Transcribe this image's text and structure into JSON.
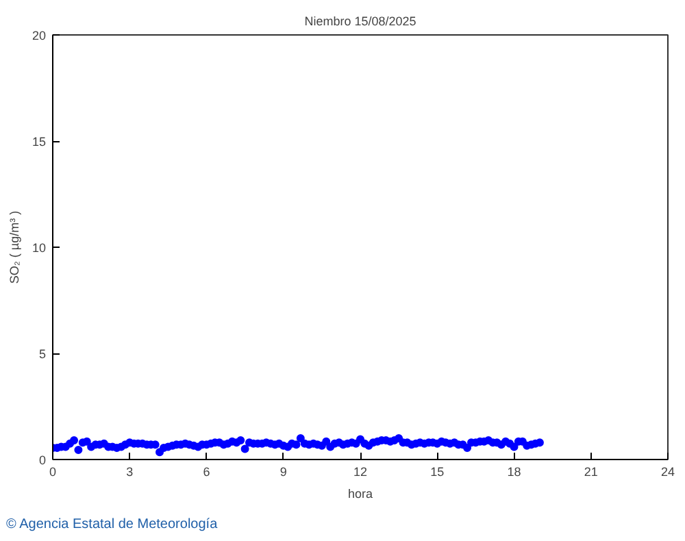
{
  "chart_data": {
    "type": "scatter",
    "title": "Niembro 15/08/2025",
    "xlabel": "hora",
    "ylabel": "SO₂ ( µg/m³ )",
    "annotations": [
      "© Agencia Estatal de Meteorología"
    ],
    "xlim": [
      0,
      24
    ],
    "xticks": [
      0,
      3,
      6,
      9,
      12,
      15,
      18,
      21,
      24
    ],
    "ylim": [
      0,
      20
    ],
    "yticks": [
      0,
      5,
      10,
      15,
      20
    ],
    "grid": false,
    "marker": "circle",
    "series": [
      {
        "color": "#0000ff",
        "x": [
          0,
          0.17,
          0.33,
          0.5,
          0.67,
          0.83,
          1,
          1.17,
          1.33,
          1.5,
          1.67,
          1.83,
          2,
          2.17,
          2.33,
          2.5,
          2.67,
          2.83,
          3,
          3.17,
          3.33,
          3.5,
          3.67,
          3.83,
          4,
          4.17,
          4.33,
          4.5,
          4.67,
          4.83,
          5,
          5.17,
          5.33,
          5.5,
          5.67,
          5.83,
          6,
          6.17,
          6.33,
          6.5,
          6.67,
          6.83,
          7,
          7.17,
          7.33,
          7.5,
          7.67,
          7.83,
          8,
          8.17,
          8.33,
          8.5,
          8.67,
          8.83,
          9,
          9.17,
          9.33,
          9.5,
          9.67,
          9.83,
          10,
          10.17,
          10.33,
          10.5,
          10.67,
          10.83,
          11,
          11.17,
          11.33,
          11.5,
          11.67,
          11.83,
          12,
          12.17,
          12.33,
          12.5,
          12.67,
          12.83,
          13,
          13.17,
          13.33,
          13.5,
          13.67,
          13.83,
          14,
          14.17,
          14.33,
          14.5,
          14.67,
          14.83,
          15,
          15.17,
          15.33,
          15.5,
          15.67,
          15.83,
          16,
          16.17,
          16.33,
          16.5,
          16.67,
          16.83,
          17,
          17.17,
          17.33,
          17.5,
          17.67,
          17.83,
          18,
          18.17,
          18.33,
          18.5,
          18.67,
          18.83,
          19
        ],
        "values": [
          0.55,
          0.55,
          0.6,
          0.6,
          0.75,
          0.9,
          0.45,
          0.8,
          0.85,
          0.6,
          0.7,
          0.7,
          0.75,
          0.6,
          0.6,
          0.55,
          0.6,
          0.7,
          0.8,
          0.75,
          0.75,
          0.75,
          0.7,
          0.7,
          0.7,
          0.35,
          0.55,
          0.6,
          0.65,
          0.7,
          0.7,
          0.75,
          0.7,
          0.65,
          0.6,
          0.7,
          0.7,
          0.75,
          0.8,
          0.8,
          0.7,
          0.75,
          0.85,
          0.8,
          0.9,
          0.5,
          0.8,
          0.75,
          0.75,
          0.75,
          0.8,
          0.75,
          0.7,
          0.75,
          0.65,
          0.6,
          0.75,
          0.7,
          1.0,
          0.75,
          0.7,
          0.75,
          0.7,
          0.65,
          0.85,
          0.6,
          0.75,
          0.8,
          0.7,
          0.75,
          0.8,
          0.75,
          0.95,
          0.75,
          0.65,
          0.8,
          0.85,
          0.9,
          0.9,
          0.85,
          0.9,
          1.0,
          0.8,
          0.8,
          0.7,
          0.75,
          0.8,
          0.75,
          0.8,
          0.8,
          0.75,
          0.85,
          0.8,
          0.75,
          0.8,
          0.7,
          0.7,
          0.55,
          0.8,
          0.8,
          0.85,
          0.85,
          0.9,
          0.8,
          0.8,
          0.7,
          0.85,
          0.75,
          0.6,
          0.85,
          0.85,
          0.65,
          0.7,
          0.75,
          0.8
        ]
      }
    ]
  }
}
